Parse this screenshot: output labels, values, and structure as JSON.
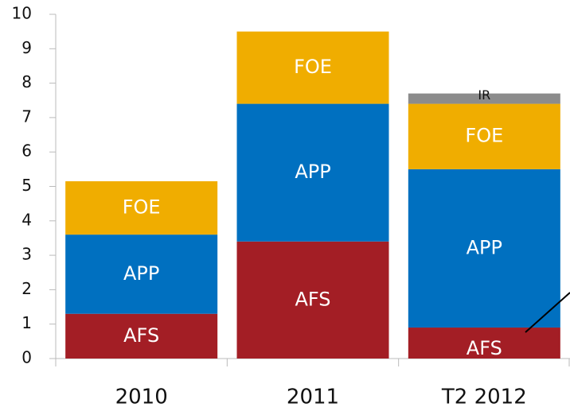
{
  "chart_data": {
    "type": "stacked_bar",
    "categories": [
      "2010",
      "2011",
      "T2 2012"
    ],
    "series": [
      {
        "name": "AFS",
        "color": "#a31e25",
        "values": [
          1.3,
          3.4,
          0.9
        ]
      },
      {
        "name": "APP",
        "color": "#0070c0",
        "values": [
          2.3,
          4.0,
          4.6
        ]
      },
      {
        "name": "FOE",
        "color": "#f0ad00",
        "values": [
          1.55,
          2.1,
          1.9
        ]
      },
      {
        "name": "IR",
        "color": "#8c8c8c",
        "values": [
          null,
          null,
          0.3
        ]
      }
    ],
    "ylim": [
      0,
      10
    ],
    "yticks": [
      0,
      1,
      2,
      3,
      4,
      5,
      6,
      7,
      8,
      9,
      10
    ]
  }
}
